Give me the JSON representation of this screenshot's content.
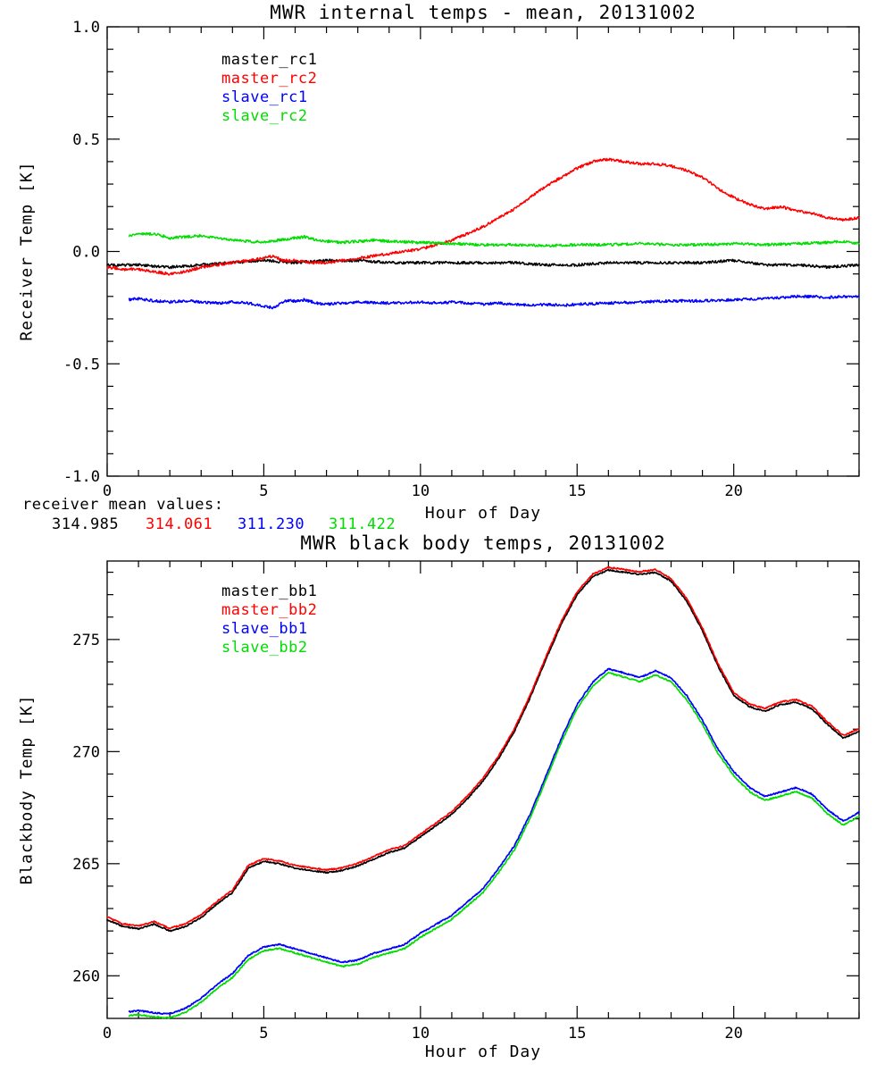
{
  "receiver_means": {
    "label": "receiver mean values:",
    "values": [
      {
        "text": "314.985",
        "color": "#000000"
      },
      {
        "text": "314.061",
        "color": "#ff0000"
      },
      {
        "text": "311.230",
        "color": "#0000ff"
      },
      {
        "text": "311.422",
        "color": "#00dd00"
      }
    ]
  },
  "chart_data": [
    {
      "type": "line",
      "title": "MWR internal temps - mean, 20131002",
      "xlabel": "Hour of Day",
      "ylabel": "Receiver Temp [K]",
      "xlim": [
        0,
        24
      ],
      "ylim": [
        -1.0,
        1.0
      ],
      "xticks": [
        0,
        5,
        10,
        15,
        20
      ],
      "xtick_labels": [
        "0",
        "5",
        "10",
        "15",
        "20"
      ],
      "xminor": 1,
      "yticks": [
        -1.0,
        -0.5,
        0.0,
        0.5,
        1.0
      ],
      "ytick_labels": [
        "-1.0",
        "-0.5",
        "0.0",
        "0.5",
        "1.0"
      ],
      "yminor": 0.1,
      "grid": false,
      "legend_position": "upper-left-inside",
      "series": [
        {
          "name": "master_rc1",
          "color": "#000000",
          "noise": 0.006,
          "x": [
            0,
            1,
            2,
            3,
            4,
            5,
            6,
            7,
            8,
            9,
            10,
            11,
            12,
            13,
            14,
            15,
            16,
            17,
            18,
            19,
            20,
            21,
            22,
            23,
            24
          ],
          "y": [
            -0.06,
            -0.06,
            -0.07,
            -0.06,
            -0.05,
            -0.04,
            -0.05,
            -0.04,
            -0.04,
            -0.05,
            -0.05,
            -0.05,
            -0.05,
            -0.05,
            -0.06,
            -0.06,
            -0.05,
            -0.05,
            -0.05,
            -0.05,
            -0.04,
            -0.06,
            -0.06,
            -0.07,
            -0.06
          ]
        },
        {
          "name": "master_rc2",
          "color": "#ff0000",
          "noise": 0.006,
          "x": [
            0,
            0.5,
            1,
            1.5,
            2,
            2.5,
            3,
            3.5,
            4,
            4.5,
            5,
            5.3,
            5.6,
            6,
            6.5,
            7,
            7.5,
            8,
            8.5,
            9,
            9.5,
            10,
            10.5,
            11,
            11.5,
            12,
            12.5,
            13,
            13.5,
            14,
            14.5,
            15,
            15.5,
            16,
            16.5,
            17,
            17.5,
            18,
            18.5,
            19,
            19.5,
            20,
            20.5,
            21,
            21.5,
            22,
            22.5,
            23,
            23.5,
            24
          ],
          "y": [
            -0.07,
            -0.08,
            -0.08,
            -0.09,
            -0.1,
            -0.09,
            -0.07,
            -0.06,
            -0.05,
            -0.04,
            -0.03,
            -0.02,
            -0.04,
            -0.04,
            -0.05,
            -0.05,
            -0.04,
            -0.03,
            -0.02,
            -0.01,
            0.0,
            0.01,
            0.03,
            0.05,
            0.08,
            0.11,
            0.15,
            0.19,
            0.24,
            0.29,
            0.33,
            0.37,
            0.4,
            0.41,
            0.4,
            0.39,
            0.39,
            0.38,
            0.36,
            0.33,
            0.28,
            0.24,
            0.21,
            0.19,
            0.2,
            0.18,
            0.17,
            0.15,
            0.14,
            0.15
          ]
        },
        {
          "name": "slave_rc1",
          "color": "#0000ff",
          "noise": 0.006,
          "x": [
            0.7,
            1,
            1.5,
            2,
            2.5,
            3,
            3.5,
            4,
            4.5,
            5,
            5.3,
            5.7,
            6,
            6.3,
            6.7,
            7,
            7.5,
            8,
            9,
            10,
            10.5,
            11,
            11.5,
            12,
            12.5,
            13,
            13.5,
            14,
            14.5,
            15,
            16,
            17,
            18,
            19,
            20,
            21,
            21.5,
            22,
            22.5,
            23,
            23.5,
            24
          ],
          "y": [
            -0.215,
            -0.21,
            -0.22,
            -0.225,
            -0.22,
            -0.225,
            -0.23,
            -0.225,
            -0.23,
            -0.245,
            -0.25,
            -0.22,
            -0.22,
            -0.215,
            -0.23,
            -0.235,
            -0.23,
            -0.225,
            -0.23,
            -0.225,
            -0.23,
            -0.225,
            -0.23,
            -0.235,
            -0.23,
            -0.235,
            -0.24,
            -0.235,
            -0.24,
            -0.235,
            -0.23,
            -0.225,
            -0.22,
            -0.22,
            -0.215,
            -0.21,
            -0.205,
            -0.2,
            -0.2,
            -0.205,
            -0.2,
            -0.2
          ]
        },
        {
          "name": "slave_rc2",
          "color": "#00dd00",
          "noise": 0.006,
          "x": [
            0.7,
            1,
            1.5,
            2,
            2.5,
            3,
            3.5,
            4,
            4.5,
            5,
            5.5,
            6,
            6.3,
            6.7,
            7,
            7.5,
            8,
            8.5,
            9,
            10,
            11,
            12,
            13,
            14,
            15,
            16,
            17,
            18,
            19,
            20,
            21,
            22,
            23,
            23.5,
            24
          ],
          "y": [
            0.07,
            0.075,
            0.08,
            0.06,
            0.065,
            0.07,
            0.06,
            0.05,
            0.045,
            0.04,
            0.05,
            0.06,
            0.065,
            0.05,
            0.045,
            0.04,
            0.045,
            0.05,
            0.045,
            0.04,
            0.035,
            0.03,
            0.03,
            0.025,
            0.03,
            0.03,
            0.035,
            0.03,
            0.03,
            0.035,
            0.03,
            0.035,
            0.04,
            0.045,
            0.035
          ]
        }
      ]
    },
    {
      "type": "line",
      "title": "MWR black body temps, 20131002",
      "xlabel": "Hour of Day",
      "ylabel": "Blackbody Temp [K]",
      "xlim": [
        0,
        24
      ],
      "ylim": [
        258.1,
        278.5
      ],
      "xticks": [
        0,
        5,
        10,
        15,
        20
      ],
      "xtick_labels": [
        "0",
        "5",
        "10",
        "15",
        "20"
      ],
      "xminor": 1,
      "yticks": [
        260,
        265,
        270,
        275
      ],
      "ytick_labels": [
        "260",
        "265",
        "270",
        "275"
      ],
      "yminor": 1,
      "grid": false,
      "legend_position": "upper-left-inside",
      "series": [
        {
          "name": "master_bb1",
          "color": "#000000",
          "noise": 0.03,
          "x": [
            0,
            0.5,
            1,
            1.5,
            2,
            2.5,
            3,
            3.5,
            4,
            4.5,
            5,
            5.5,
            6,
            6.5,
            7,
            7.5,
            8,
            8.5,
            9,
            9.5,
            10,
            10.5,
            11,
            11.5,
            12,
            12.5,
            13,
            13.5,
            14,
            14.5,
            15,
            15.5,
            16,
            16.5,
            17,
            17.5,
            18,
            18.5,
            19,
            19.5,
            20,
            20.5,
            21,
            21.5,
            22,
            22.5,
            23,
            23.5,
            24
          ],
          "y": [
            262.5,
            262.2,
            262.1,
            262.3,
            262.0,
            262.2,
            262.6,
            263.2,
            263.7,
            264.8,
            265.1,
            265.0,
            264.8,
            264.7,
            264.6,
            264.7,
            264.9,
            265.2,
            265.5,
            265.7,
            266.2,
            266.7,
            267.2,
            267.9,
            268.7,
            269.7,
            270.9,
            272.4,
            274.1,
            275.7,
            277.0,
            277.8,
            278.1,
            278.0,
            277.9,
            278.0,
            277.6,
            276.7,
            275.4,
            273.8,
            272.5,
            272.0,
            271.8,
            272.1,
            272.2,
            271.9,
            271.2,
            270.6,
            270.9
          ]
        },
        {
          "name": "master_bb2",
          "color": "#ff0000",
          "noise": 0.03,
          "x": [
            0,
            0.5,
            1,
            1.5,
            2,
            2.5,
            3,
            3.5,
            4,
            4.5,
            5,
            5.5,
            6,
            6.5,
            7,
            7.5,
            8,
            8.5,
            9,
            9.5,
            10,
            10.5,
            11,
            11.5,
            12,
            12.5,
            13,
            13.5,
            14,
            14.5,
            15,
            15.5,
            16,
            16.5,
            17,
            17.5,
            18,
            18.5,
            19,
            19.5,
            20,
            20.5,
            21,
            21.5,
            22,
            22.5,
            23,
            23.5,
            24
          ],
          "y": [
            262.62,
            262.32,
            262.22,
            262.42,
            262.12,
            262.32,
            262.72,
            263.32,
            263.82,
            264.92,
            265.22,
            265.12,
            264.92,
            264.82,
            264.72,
            264.82,
            265.02,
            265.32,
            265.62,
            265.82,
            266.32,
            266.82,
            267.32,
            268.02,
            268.82,
            269.82,
            271.02,
            272.52,
            274.22,
            275.82,
            277.12,
            277.92,
            278.22,
            278.12,
            278.02,
            278.12,
            277.72,
            276.82,
            275.52,
            273.92,
            272.62,
            272.12,
            271.92,
            272.22,
            272.32,
            272.02,
            271.32,
            270.72,
            271.02
          ]
        },
        {
          "name": "slave_bb1",
          "color": "#0000ff",
          "noise": 0.03,
          "x": [
            0.7,
            1,
            1.5,
            2,
            2.5,
            3,
            3.5,
            4,
            4.5,
            5,
            5.5,
            6,
            6.5,
            7,
            7.5,
            8,
            8.5,
            9,
            9.5,
            10,
            10.5,
            11,
            11.5,
            12,
            12.5,
            13,
            13.5,
            14,
            14.5,
            15,
            15.5,
            16,
            16.5,
            17,
            17.5,
            18,
            18.5,
            19,
            19.5,
            20,
            20.5,
            21,
            21.5,
            22,
            22.5,
            23,
            23.5,
            24
          ],
          "y": [
            258.4,
            258.45,
            258.35,
            258.3,
            258.55,
            259.0,
            259.6,
            260.1,
            260.9,
            261.3,
            261.4,
            261.2,
            261.0,
            260.8,
            260.6,
            260.7,
            261.0,
            261.2,
            261.4,
            261.9,
            262.3,
            262.7,
            263.3,
            263.9,
            264.8,
            265.8,
            267.2,
            268.9,
            270.6,
            272.1,
            273.1,
            273.7,
            273.5,
            273.3,
            273.6,
            273.3,
            272.5,
            271.4,
            270.1,
            269.1,
            268.4,
            268.0,
            268.2,
            268.4,
            268.1,
            267.4,
            266.9,
            267.3
          ]
        },
        {
          "name": "slave_bb2",
          "color": "#00dd00",
          "noise": 0.03,
          "x": [
            0.7,
            1,
            1.5,
            2,
            2.5,
            3,
            3.5,
            4,
            4.5,
            5,
            5.5,
            6,
            6.5,
            7,
            7.5,
            8,
            8.5,
            9,
            9.5,
            10,
            10.5,
            11,
            11.5,
            12,
            12.5,
            13,
            13.5,
            14,
            14.5,
            15,
            15.5,
            16,
            16.5,
            17,
            17.5,
            18,
            18.5,
            19,
            19.5,
            20,
            20.5,
            21,
            21.5,
            22,
            22.5,
            23,
            23.5,
            24
          ],
          "y": [
            258.22,
            258.27,
            258.17,
            258.12,
            258.37,
            258.82,
            259.42,
            259.92,
            260.72,
            261.12,
            261.22,
            261.02,
            260.82,
            260.62,
            260.42,
            260.52,
            260.82,
            261.02,
            261.22,
            261.72,
            262.12,
            262.52,
            263.12,
            263.72,
            264.62,
            265.62,
            267.02,
            268.72,
            270.42,
            271.92,
            272.92,
            273.52,
            273.32,
            273.12,
            273.42,
            273.12,
            272.32,
            271.22,
            269.92,
            268.92,
            268.22,
            267.82,
            268.02,
            268.22,
            267.92,
            267.22,
            266.72,
            267.12
          ]
        }
      ]
    }
  ]
}
